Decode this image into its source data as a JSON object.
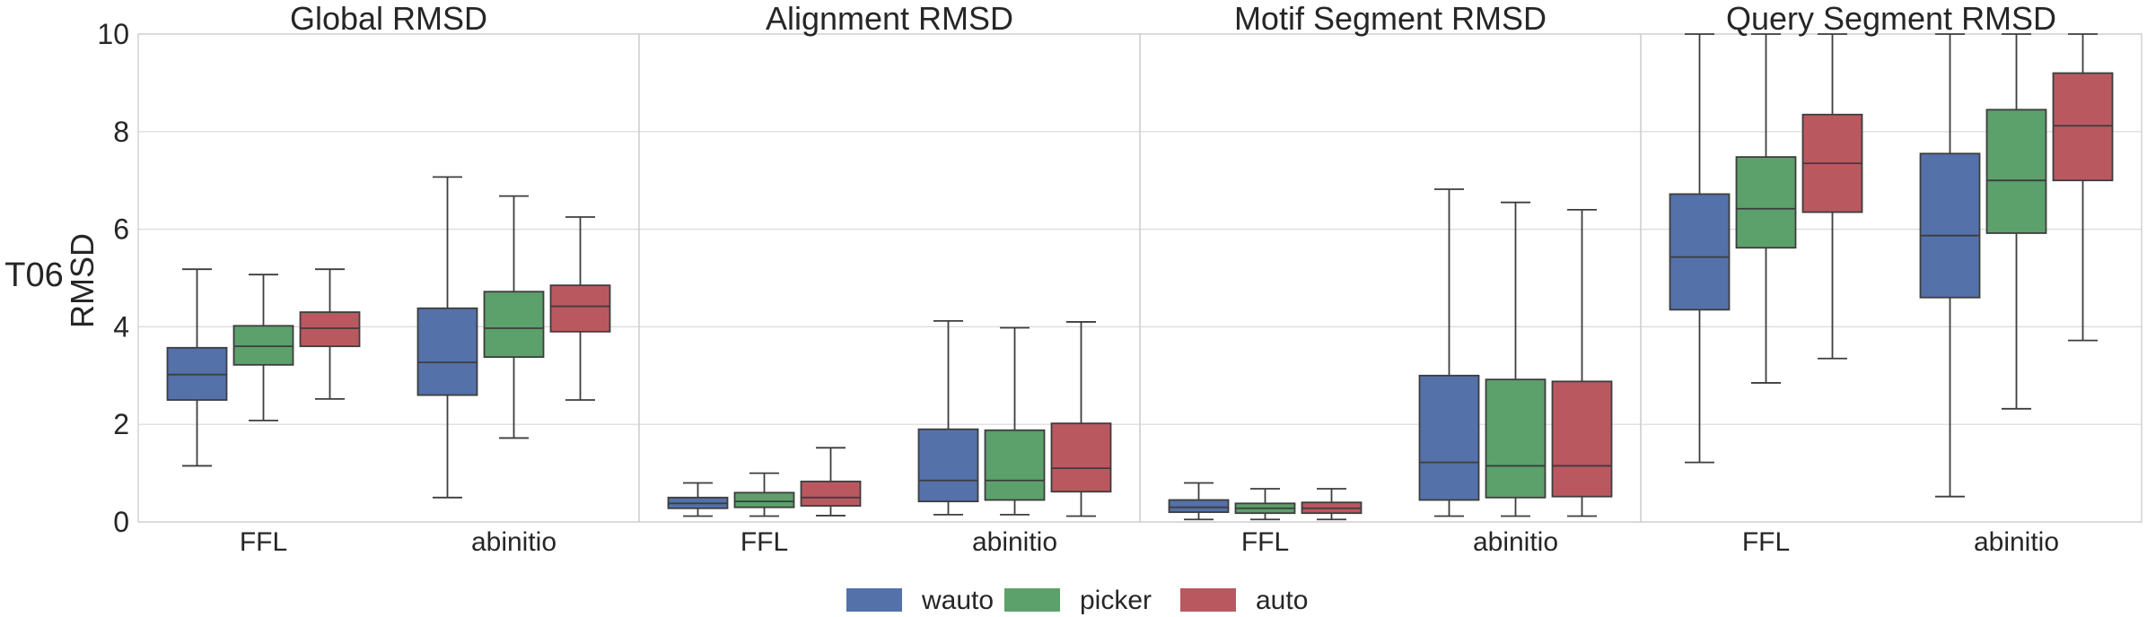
{
  "chart_data": {
    "type": "box",
    "row_label": "T06",
    "ylabel": "RMSD",
    "ylim": [
      0,
      10
    ],
    "yticks": [
      0,
      2,
      4,
      6,
      8,
      10
    ],
    "categories": [
      "FFL",
      "abinitio"
    ],
    "legend": {
      "placement": "bottom-center"
    },
    "series": [
      {
        "name": "wauto",
        "color": "#5471a9"
      },
      {
        "name": "picker",
        "color": "#5ca06c"
      },
      {
        "name": "auto",
        "color": "#ba5860"
      }
    ],
    "panels": [
      {
        "title": "Global RMSD",
        "boxes": {
          "FFL": [
            {
              "whislo": 1.15,
              "q1": 2.5,
              "med": 3.02,
              "q3": 3.57,
              "whishi": 5.18
            },
            {
              "whislo": 2.08,
              "q1": 3.22,
              "med": 3.6,
              "q3": 4.02,
              "whishi": 5.07
            },
            {
              "whislo": 2.52,
              "q1": 3.6,
              "med": 3.97,
              "q3": 4.3,
              "whishi": 5.18
            }
          ],
          "abinitio": [
            {
              "whislo": 0.5,
              "q1": 2.6,
              "med": 3.27,
              "q3": 4.38,
              "whishi": 7.07
            },
            {
              "whislo": 1.72,
              "q1": 3.38,
              "med": 3.97,
              "q3": 4.72,
              "whishi": 6.68
            },
            {
              "whislo": 2.5,
              "q1": 3.9,
              "med": 4.42,
              "q3": 4.85,
              "whishi": 6.25
            }
          ]
        }
      },
      {
        "title": "Alignment RMSD",
        "boxes": {
          "FFL": [
            {
              "whislo": 0.12,
              "q1": 0.28,
              "med": 0.38,
              "q3": 0.5,
              "whishi": 0.8
            },
            {
              "whislo": 0.12,
              "q1": 0.3,
              "med": 0.42,
              "q3": 0.6,
              "whishi": 1.0
            },
            {
              "whislo": 0.13,
              "q1": 0.33,
              "med": 0.5,
              "q3": 0.83,
              "whishi": 1.52
            }
          ],
          "abinitio": [
            {
              "whislo": 0.15,
              "q1": 0.42,
              "med": 0.85,
              "q3": 1.9,
              "whishi": 4.12
            },
            {
              "whislo": 0.15,
              "q1": 0.45,
              "med": 0.85,
              "q3": 1.88,
              "whishi": 3.98
            },
            {
              "whislo": 0.12,
              "q1": 0.62,
              "med": 1.1,
              "q3": 2.02,
              "whishi": 4.1
            }
          ]
        }
      },
      {
        "title": "Motif Segment RMSD",
        "boxes": {
          "FFL": [
            {
              "whislo": 0.05,
              "q1": 0.2,
              "med": 0.3,
              "q3": 0.45,
              "whishi": 0.8
            },
            {
              "whislo": 0.05,
              "q1": 0.18,
              "med": 0.28,
              "q3": 0.38,
              "whishi": 0.68
            },
            {
              "whislo": 0.05,
              "q1": 0.18,
              "med": 0.28,
              "q3": 0.4,
              "whishi": 0.68
            }
          ],
          "abinitio": [
            {
              "whislo": 0.12,
              "q1": 0.45,
              "med": 1.22,
              "q3": 3.0,
              "whishi": 6.82
            },
            {
              "whislo": 0.12,
              "q1": 0.5,
              "med": 1.15,
              "q3": 2.92,
              "whishi": 6.55
            },
            {
              "whislo": 0.12,
              "q1": 0.52,
              "med": 1.15,
              "q3": 2.88,
              "whishi": 6.4
            }
          ]
        }
      },
      {
        "title": "Query Segment RMSD",
        "boxes": {
          "FFL": [
            {
              "whislo": 1.22,
              "q1": 4.35,
              "med": 5.43,
              "q3": 6.72,
              "whishi": 10
            },
            {
              "whislo": 2.85,
              "q1": 5.62,
              "med": 6.42,
              "q3": 7.48,
              "whishi": 10
            },
            {
              "whislo": 3.35,
              "q1": 6.35,
              "med": 7.35,
              "q3": 8.35,
              "whishi": 10
            }
          ],
          "abinitio": [
            {
              "whislo": 0.52,
              "q1": 4.6,
              "med": 5.87,
              "q3": 7.55,
              "whishi": 10
            },
            {
              "whislo": 2.32,
              "q1": 5.92,
              "med": 7.0,
              "q3": 8.45,
              "whishi": 10
            },
            {
              "whislo": 3.72,
              "q1": 7.0,
              "med": 8.12,
              "q3": 9.2,
              "whishi": 10
            }
          ]
        }
      }
    ]
  }
}
